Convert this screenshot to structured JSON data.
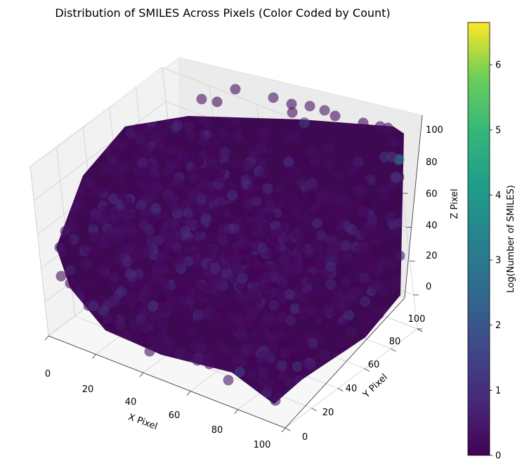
{
  "chart_data": {
    "type": "scatter",
    "title": "Distribution of SMILES Across Pixels (Color Coded by Count)",
    "xlabel": "X Pixel",
    "ylabel": "Y Pixel",
    "zlabel": "Z Pixel",
    "xlim": [
      0,
      100
    ],
    "ylim": [
      0,
      100
    ],
    "zlim": [
      0,
      100
    ],
    "x_ticks": [
      "0",
      "20",
      "40",
      "60",
      "80",
      "100"
    ],
    "y_ticks": [
      "0",
      "20",
      "40",
      "60",
      "80",
      "100"
    ],
    "z_ticks": [
      "0",
      "20",
      "40",
      "60",
      "80",
      "100"
    ],
    "grid": true,
    "projection": "3d",
    "marker_alpha": 0.6,
    "colorbar": {
      "label": "Log(Number of SMILES)",
      "colormap": "viridis",
      "range": [
        0,
        6.65
      ],
      "ticks": [
        "0",
        "1",
        "2",
        "3",
        "4",
        "5",
        "6"
      ]
    },
    "points": [
      {
        "x": 100,
        "y": 100,
        "z": 100,
        "c": 3.5
      },
      {
        "x": 97,
        "y": 100,
        "z": 100,
        "c": 1.2
      },
      {
        "x": 95,
        "y": 98,
        "z": 100,
        "c": 1.1
      },
      {
        "x": 98,
        "y": 100,
        "z": 88,
        "c": 1.0
      },
      {
        "x": 100,
        "y": 96,
        "z": 92,
        "c": 1.0
      },
      {
        "x": 60,
        "y": 100,
        "z": 100,
        "c": 1.3
      },
      {
        "x": 70,
        "y": 70,
        "z": 100,
        "c": 1.0
      },
      {
        "x": 50,
        "y": 60,
        "z": 75,
        "c": 1.0
      },
      {
        "x": 20,
        "y": 30,
        "z": 30,
        "c": 1.0
      },
      {
        "x": 15,
        "y": 10,
        "z": 20,
        "c": 1.0
      },
      {
        "x": 35,
        "y": 20,
        "z": 25,
        "c": 1.2
      },
      {
        "x": 70,
        "y": 20,
        "z": 5,
        "c": 1.5
      },
      {
        "x": 40,
        "y": 40,
        "z": 60,
        "c": 1.0
      }
    ]
  }
}
